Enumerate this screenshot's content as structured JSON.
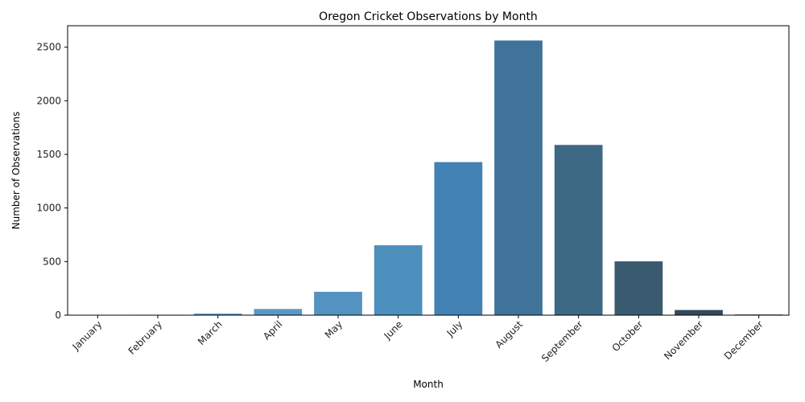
{
  "chart_data": {
    "type": "bar",
    "title": "Oregon Cricket Observations by Month",
    "xlabel": "Month",
    "ylabel": "Number of Observations",
    "categories": [
      "January",
      "February",
      "March",
      "April",
      "May",
      "June",
      "July",
      "August",
      "September",
      "October",
      "November",
      "December"
    ],
    "values": [
      3,
      4,
      15,
      58,
      218,
      652,
      1428,
      2562,
      1588,
      502,
      48,
      6
    ],
    "colors": [
      "#6aaed6",
      "#66a4cc",
      "#629ac3",
      "#5b98c6",
      "#5493c0",
      "#4d8fbd",
      "#4282b4",
      "#3f7399",
      "#3d6985",
      "#3a5a70",
      "#33495b",
      "#2b3a48"
    ],
    "ylim": [
      0,
      2700
    ],
    "yticks": [
      0,
      500,
      1000,
      1500,
      2000,
      2500
    ],
    "grid": false,
    "legend": "none"
  }
}
